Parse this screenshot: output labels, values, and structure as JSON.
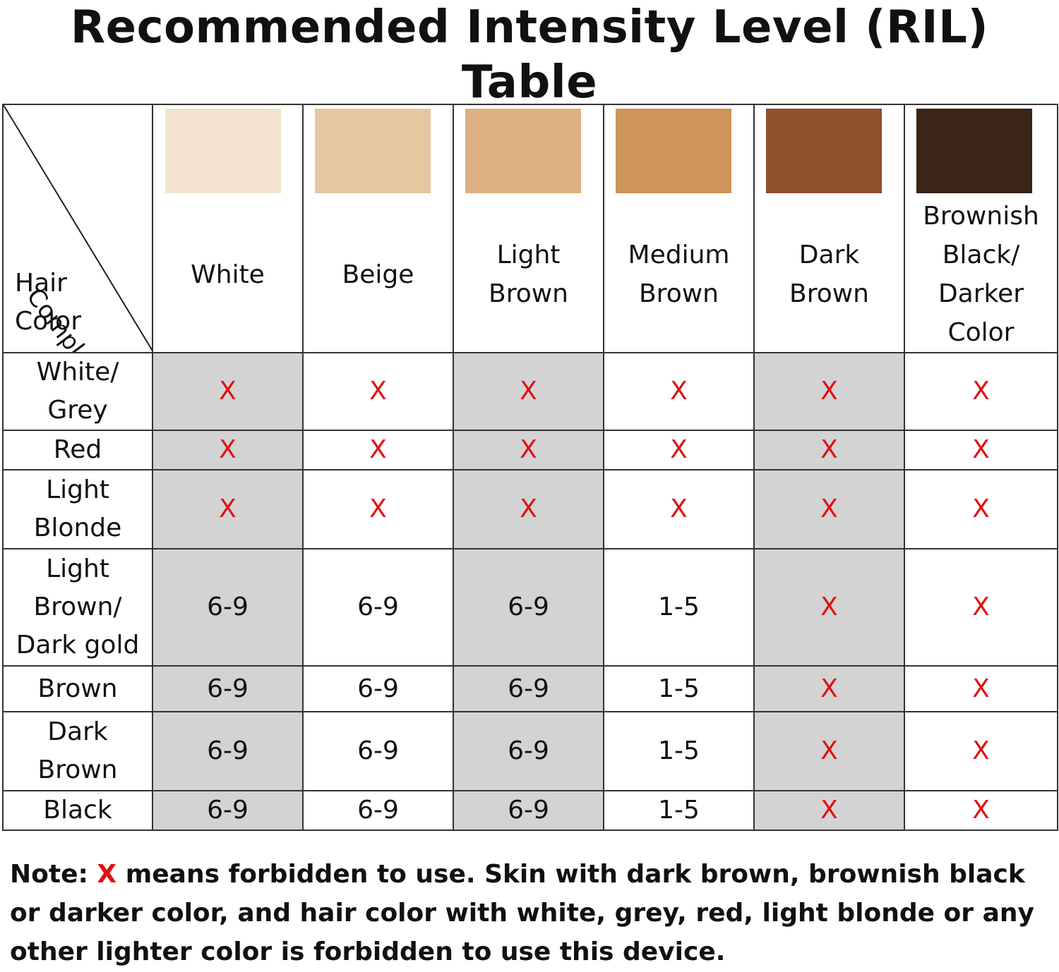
{
  "title": "Recommended Intensity Level (RIL) Table",
  "table": {
    "corner": {
      "complexion_label": "Complexion",
      "hair_label": "Hair\nColor"
    },
    "columns": [
      {
        "label": "White",
        "swatch_color": "#f3e3cf"
      },
      {
        "label": "Beige",
        "swatch_color": "#e5c7a1"
      },
      {
        "label": "Light\nBrown",
        "swatch_color": "#dcb080"
      },
      {
        "label": "Medium\nBrown",
        "swatch_color": "#cd955a"
      },
      {
        "label": "Dark\nBrown",
        "swatch_color": "#8e4f2a"
      },
      {
        "label": "Brownish\nBlack/\nDarker\nColor",
        "swatch_color": "#3b2418"
      }
    ],
    "rows": [
      {
        "label": "White/\nGrey",
        "cells": [
          "X",
          "X",
          "X",
          "X",
          "X",
          "X"
        ]
      },
      {
        "label": "Red",
        "cells": [
          "X",
          "X",
          "X",
          "X",
          "X",
          "X"
        ]
      },
      {
        "label": "Light\nBlonde",
        "cells": [
          "X",
          "X",
          "X",
          "X",
          "X",
          "X"
        ]
      },
      {
        "label": "Light\nBrown/\nDark gold",
        "cells": [
          "6-9",
          "6-9",
          "6-9",
          "1-5",
          "X",
          "X"
        ]
      },
      {
        "label": "Brown",
        "cells": [
          "6-9",
          "6-9",
          "6-9",
          "1-5",
          "X",
          "X"
        ]
      },
      {
        "label": "Dark\nBrown",
        "cells": [
          "6-9",
          "6-9",
          "6-9",
          "1-5",
          "X",
          "X"
        ]
      },
      {
        "label": "Black",
        "cells": [
          "6-9",
          "6-9",
          "6-9",
          "1-5",
          "X",
          "X"
        ]
      }
    ]
  },
  "note": {
    "prefix": "Note: ",
    "symbol": "X",
    "text": " means forbidden to use. Skin with dark brown, brownish black or darker color, and hair color with white, grey, red, light blonde or any other lighter color is forbidden to use this device."
  },
  "colors": {
    "forbidden": "#e01010",
    "shaded_column": "#d3d3d3",
    "border": "#333333"
  }
}
